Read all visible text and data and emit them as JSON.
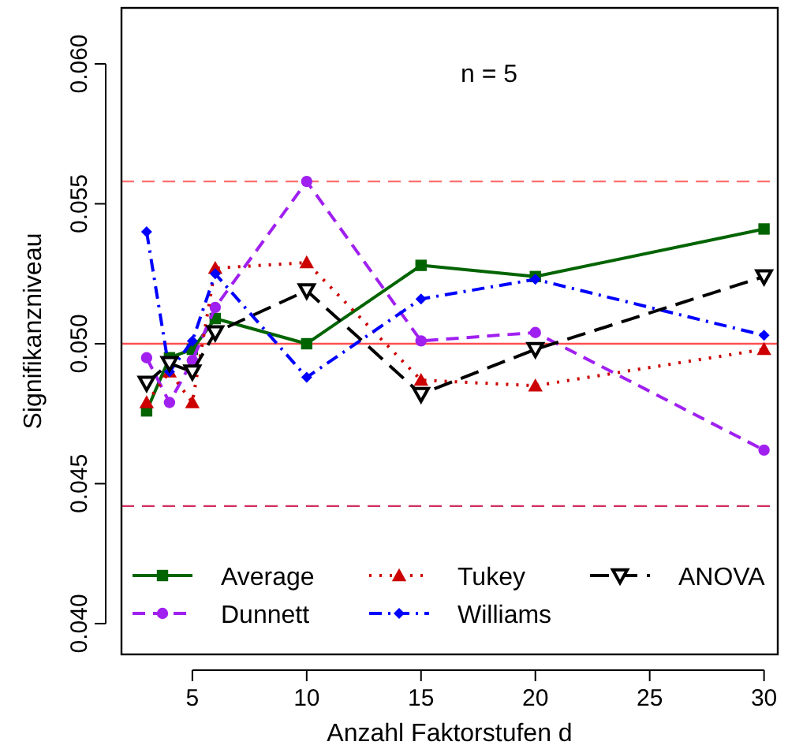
{
  "chart_data": {
    "type": "line",
    "xlabel": "Anzahl Faktorstufen d",
    "ylabel": "Signifikanzniveau",
    "annotations": [
      "n = 5"
    ],
    "x": [
      3,
      4,
      5,
      6,
      10,
      15,
      20,
      30
    ],
    "xlim": [
      1.9,
      30.6
    ],
    "xticks": [
      5,
      10,
      15,
      20,
      25,
      30
    ],
    "ylim": [
      0.0389,
      0.062
    ],
    "yticks": [
      {
        "value": 0.04,
        "label": "0.040"
      },
      {
        "value": 0.045,
        "label": "0.045"
      },
      {
        "value": 0.05,
        "label": "0.050"
      },
      {
        "value": 0.055,
        "label": "0.055"
      },
      {
        "value": 0.06,
        "label": "0.060"
      }
    ],
    "legend": "bottom left",
    "series": [
      {
        "name": "Average",
        "color": "#006400",
        "marker": "square",
        "line_style": "solid",
        "values": [
          0.0476,
          0.0495,
          0.0498,
          0.0509,
          0.05,
          0.0528,
          0.0524,
          0.0541
        ]
      },
      {
        "name": "Dunnett",
        "color": "#a020f0",
        "marker": "circle",
        "line_style": "dashed",
        "values": [
          0.0495,
          0.0479,
          0.0494,
          0.0513,
          0.0558,
          0.0501,
          0.0504,
          0.0462
        ]
      },
      {
        "name": "Tukey",
        "color": "#cc0000",
        "marker": "triangle",
        "line_style": "dotted",
        "values": [
          0.0479,
          0.049,
          0.0479,
          0.0527,
          0.0529,
          0.0487,
          0.0485,
          0.0498
        ]
      },
      {
        "name": "Williams",
        "color": "#0000ff",
        "marker": "diamond",
        "line_style": "dashdot",
        "values": [
          0.054,
          0.049,
          0.0501,
          0.0525,
          0.0488,
          0.0516,
          0.0523,
          0.0503
        ]
      },
      {
        "name": "ANOVA",
        "color": "#000000",
        "marker": "triangle-down",
        "line_style": "longdash",
        "values": [
          0.0486,
          0.0493,
          0.049,
          0.0504,
          0.0519,
          0.0482,
          0.0498,
          0.0524
        ]
      }
    ],
    "ref_lines": [
      {
        "axis": "y",
        "value": 0.05,
        "color": "#ff5050",
        "line_style": "solid"
      },
      {
        "axis": "y",
        "value": 0.0558,
        "color": "#ff7070",
        "line_style": "dashed"
      },
      {
        "axis": "y",
        "value": 0.0442,
        "color": "#d03060",
        "line_style": "dashed"
      }
    ]
  }
}
